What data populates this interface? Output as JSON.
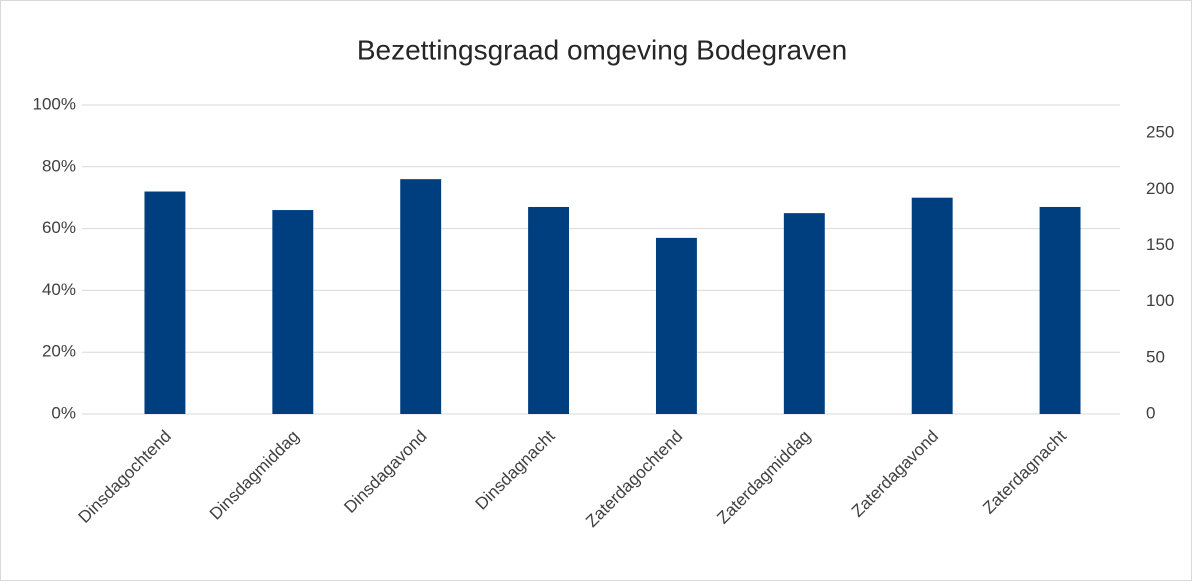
{
  "chart_data": {
    "type": "bar",
    "title": "Bezettingsgraad omgeving Bodegraven",
    "categories": [
      "Dinsdagochtend",
      "Dinsdagmiddag",
      "Dinsdagavond",
      "Dinsdagnacht",
      "Zaterdagochtend",
      "Zaterdagmiddag",
      "Zaterdagavond",
      "Zaterdagnacht"
    ],
    "values": [
      72,
      66,
      76,
      67,
      57,
      65,
      70,
      67
    ],
    "color": "#003f7f",
    "ylim": [
      0,
      100
    ],
    "yticks": [
      {
        "value": 0,
        "label": "0%"
      },
      {
        "value": 20,
        "label": "20%"
      },
      {
        "value": 40,
        "label": "40%"
      },
      {
        "value": 60,
        "label": "60%"
      },
      {
        "value": 80,
        "label": "80%"
      },
      {
        "value": 100,
        "label": "100%"
      }
    ],
    "y2lim": [
      0,
      275
    ],
    "y2ticks": [
      0,
      50,
      100,
      150,
      200,
      250
    ],
    "grid": true
  }
}
